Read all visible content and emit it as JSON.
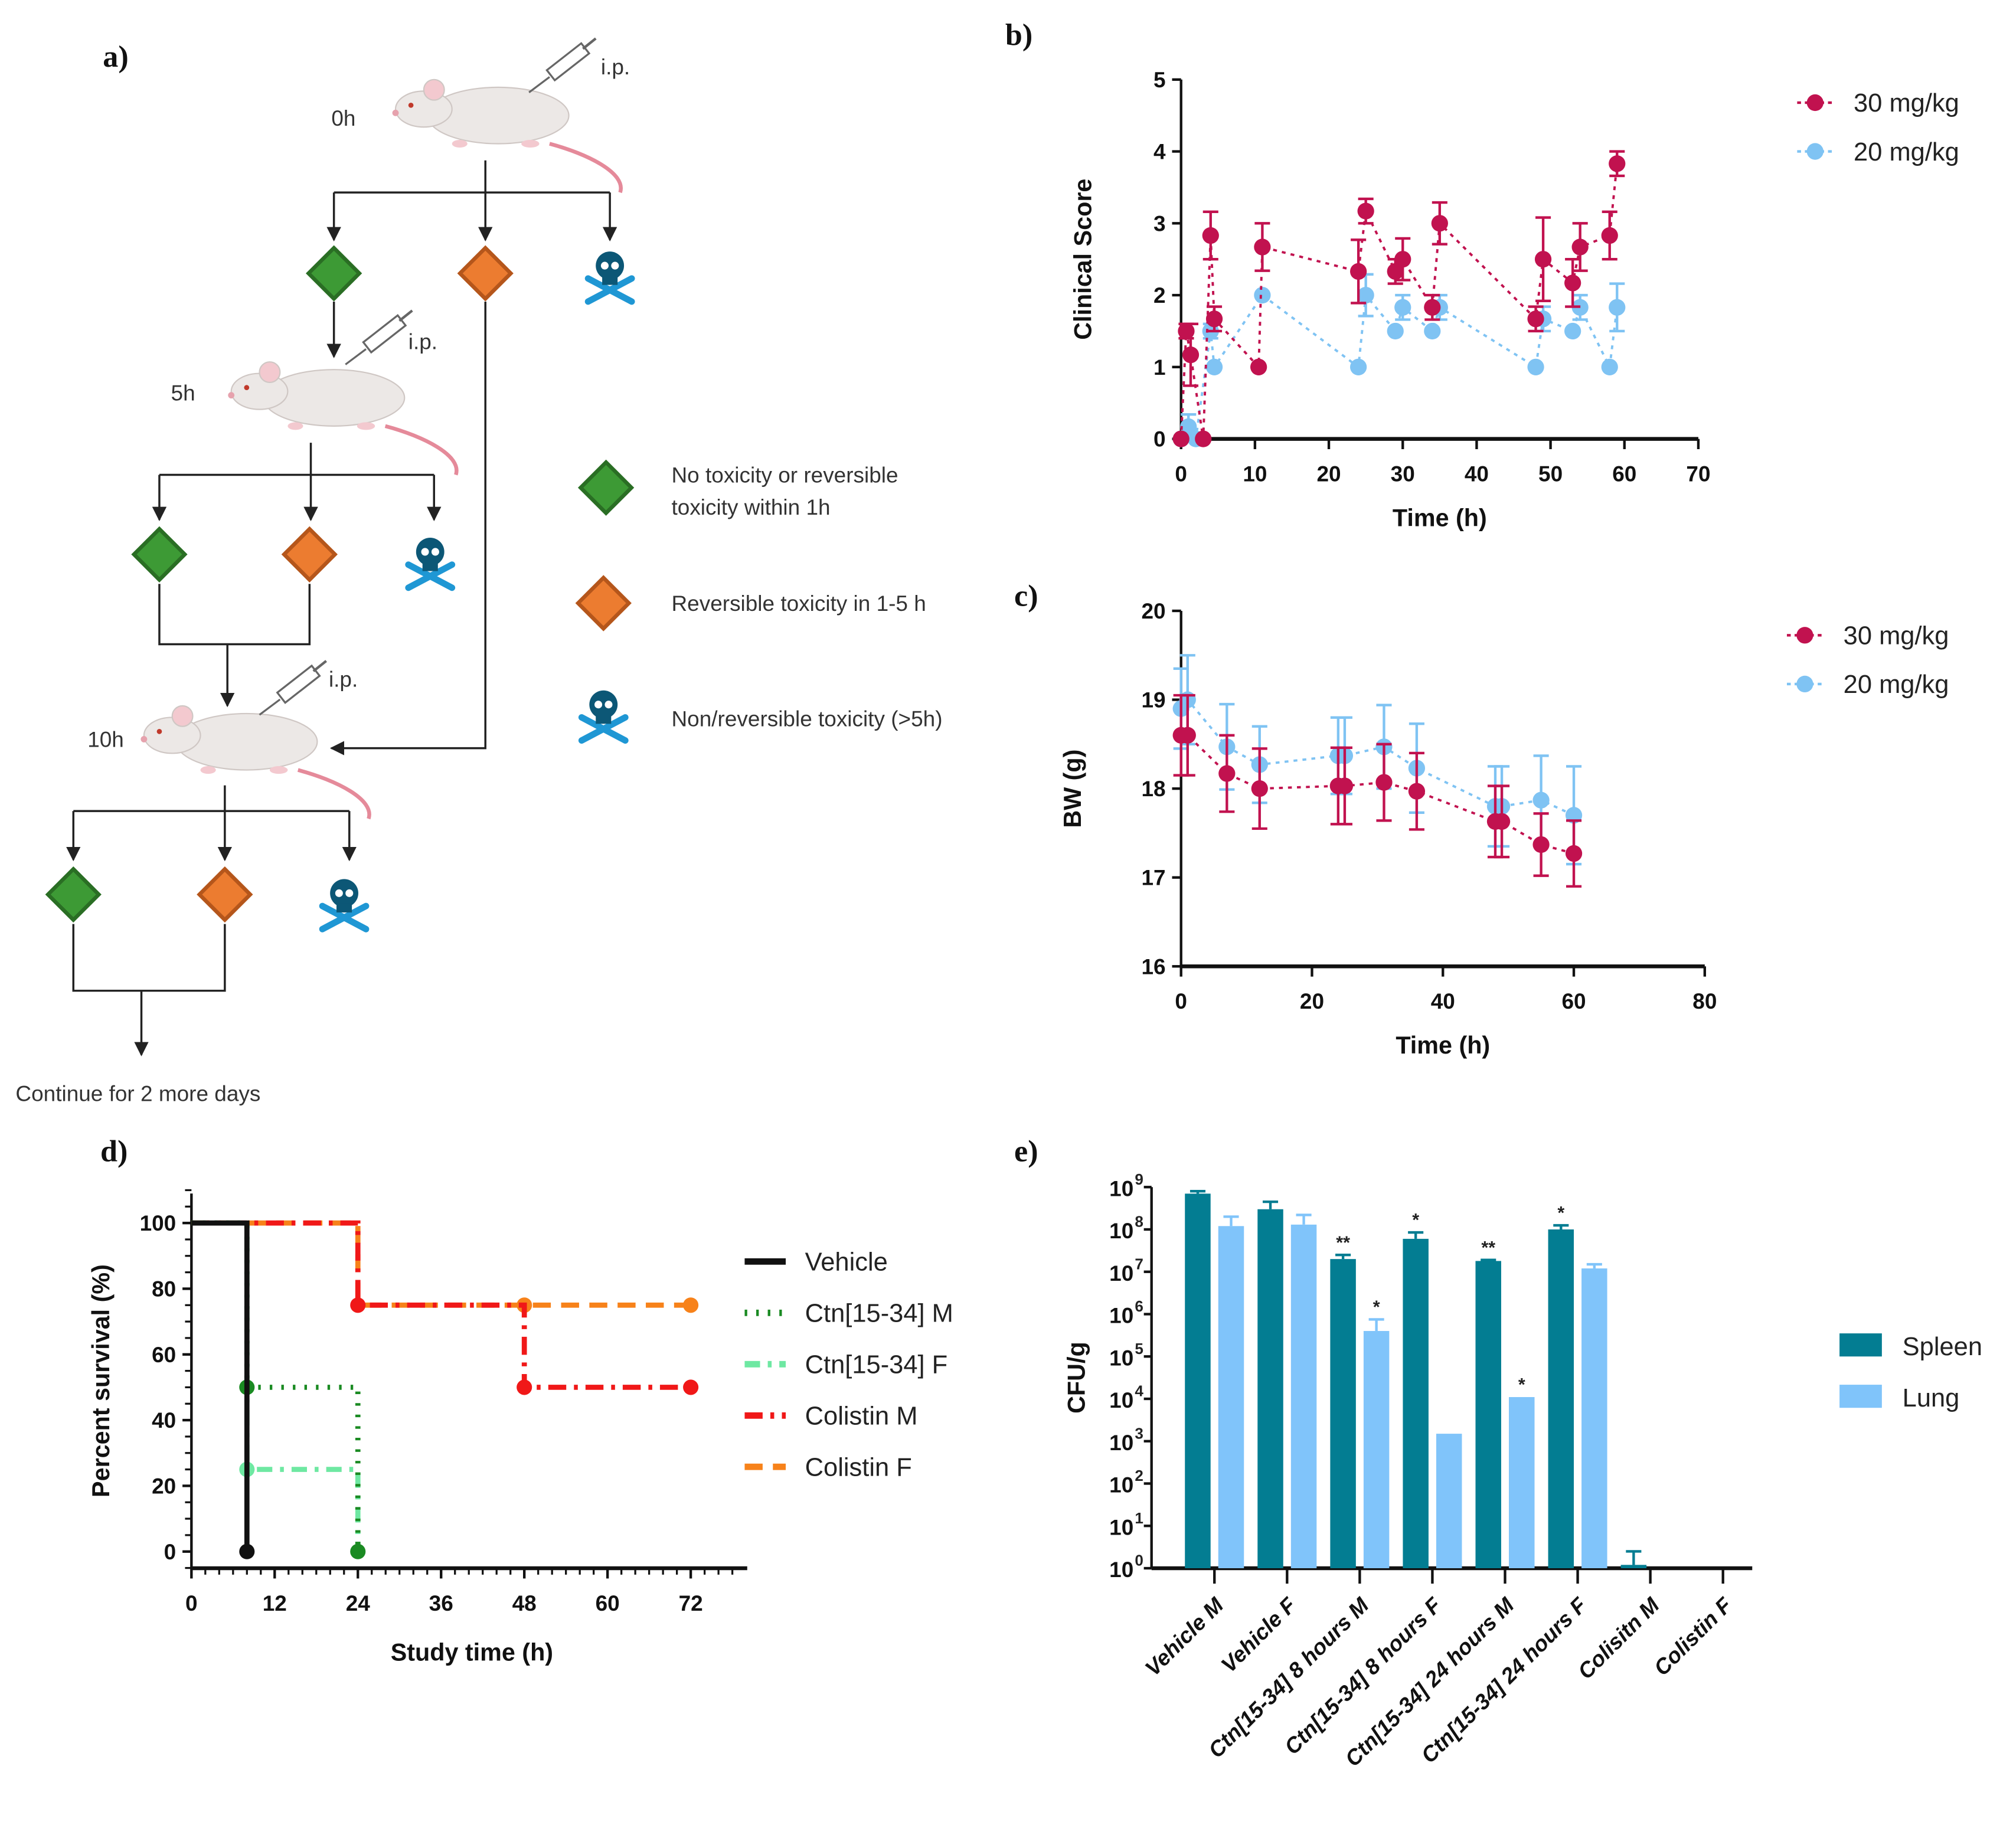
{
  "panel_labels": {
    "a": "a)",
    "b": "b)",
    "c": "c)",
    "d": "d)",
    "e": "e)"
  },
  "panel_a": {
    "time_labels": [
      "0h",
      "5h",
      "10h"
    ],
    "injection_label": "i.p.",
    "final_step": "Continue  for 2 more days",
    "legend": [
      {
        "icon": "green-diamond",
        "color": "#3d9a35",
        "lines": [
          "No toxicity or reversible",
          "toxicity within 1h"
        ]
      },
      {
        "icon": "orange-diamond",
        "color": "#ec7c30",
        "lines": [
          "Reversible  toxicity in 1-5 h"
        ]
      },
      {
        "icon": "skull-crossbones",
        "color": "#1f97d4",
        "lines": [
          "Non/reversible  toxicity (>5h)"
        ]
      }
    ]
  },
  "chart_data": [
    {
      "id": "b",
      "type": "scatter",
      "xlabel": "Time (h)",
      "ylabel": "Clinical Score",
      "xlim": [
        0,
        70
      ],
      "ylim": [
        0,
        5
      ],
      "xticks": [
        0,
        10,
        20,
        30,
        40,
        50,
        60,
        70
      ],
      "yticks": [
        0,
        1,
        2,
        3,
        4,
        5
      ],
      "legend_position": "top-right",
      "error_bars": true,
      "lines": "dotted",
      "series": [
        {
          "name": "30 mg/kg",
          "color": "#c1124f",
          "x": [
            0,
            0.7,
            1.3,
            3,
            4,
            4.5,
            10.5,
            11,
            24,
            25,
            29,
            30,
            34,
            35,
            48,
            49,
            53,
            54,
            58,
            59
          ],
          "y": [
            0,
            1.5,
            1.17,
            0,
            2.83,
            1.67,
            1,
            2.67,
            2.33,
            3.17,
            2.33,
            2.5,
            1.83,
            3,
            1.67,
            2.5,
            2.17,
            2.67,
            2.83,
            3.83
          ],
          "err": [
            0,
            0.1,
            0.43,
            0,
            0.33,
            0.17,
            0,
            0.33,
            0.44,
            0.17,
            0.17,
            0.29,
            0.17,
            0.29,
            0.17,
            0.58,
            0.33,
            0.33,
            0.33,
            0.17
          ]
        },
        {
          "name": "20 mg/kg",
          "color": "#7fc3f3",
          "x": [
            0,
            1,
            2,
            4,
            4.5,
            11,
            24,
            25,
            29,
            30,
            34,
            35,
            48,
            49,
            53,
            54,
            58,
            59
          ],
          "y": [
            0,
            0.17,
            0,
            1.5,
            1,
            2,
            1,
            2,
            1.5,
            1.83,
            1.5,
            1.83,
            1,
            1.67,
            1.5,
            1.83,
            1,
            1.83
          ],
          "err": [
            0,
            0.17,
            0,
            0.1,
            0,
            0,
            0,
            0.29,
            0,
            0.17,
            0,
            0.17,
            0,
            0.17,
            0,
            0.17,
            0,
            0.33
          ]
        }
      ]
    },
    {
      "id": "c",
      "type": "scatter",
      "xlabel": "Time (h)",
      "ylabel": "BW  (g)",
      "xlim": [
        0,
        80
      ],
      "ylim": [
        16,
        20
      ],
      "xticks": [
        0,
        20,
        40,
        60,
        80
      ],
      "yticks": [
        16,
        17,
        18,
        19,
        20
      ],
      "legend_position": "top-right",
      "error_bars": true,
      "lines": "dotted",
      "series": [
        {
          "name": "30 mg/kg",
          "color": "#c1124f",
          "x": [
            0,
            1,
            7,
            12,
            24,
            25,
            31,
            36,
            48,
            49,
            55,
            60
          ],
          "y": [
            18.6,
            18.6,
            18.17,
            18,
            18.03,
            18.03,
            18.07,
            17.97,
            17.63,
            17.63,
            17.37,
            17.27
          ],
          "err": [
            0.45,
            0.45,
            0.43,
            0.45,
            0.43,
            0.43,
            0.43,
            0.43,
            0.4,
            0.4,
            0.35,
            0.37
          ]
        },
        {
          "name": "20 mg/kg",
          "color": "#7fc3f3",
          "x": [
            0,
            1,
            7,
            12,
            24,
            25,
            31,
            36,
            48,
            49,
            55,
            60
          ],
          "y": [
            18.9,
            19,
            18.47,
            18.27,
            18.37,
            18.37,
            18.47,
            18.23,
            17.8,
            17.8,
            17.87,
            17.7
          ],
          "err": [
            0.45,
            0.5,
            0.48,
            0.43,
            0.43,
            0.43,
            0.47,
            0.5,
            0.45,
            0.45,
            0.5,
            0.55
          ]
        }
      ]
    },
    {
      "id": "d",
      "type": "line",
      "step": true,
      "xlabel": "Study time (h)",
      "ylabel": "Percent survival (%)",
      "xlim": [
        0,
        78
      ],
      "ylim": [
        -5,
        110
      ],
      "xticks": [
        0,
        12,
        24,
        36,
        48,
        60,
        72
      ],
      "yticks": [
        0,
        20,
        40,
        60,
        80,
        100
      ],
      "legend_position": "right",
      "series": [
        {
          "name": "Vehicle",
          "color": "#111111",
          "dash": "",
          "x": [
            0,
            8,
            8
          ],
          "y": [
            100,
            100,
            0
          ],
          "markers": [
            [
              8,
              0
            ]
          ]
        },
        {
          "name": "Ctn[15-34] M",
          "color": "#1a8a22",
          "dash": "2 7",
          "x": [
            0,
            8,
            8,
            24,
            24
          ],
          "y": [
            100,
            100,
            50,
            50,
            0
          ],
          "markers": [
            [
              8,
              50
            ],
            [
              24,
              0
            ]
          ]
        },
        {
          "name": "Ctn[15-34] F",
          "color": "#6ee8a2",
          "dash": "12 6 3 6",
          "x": [
            0,
            8,
            8,
            24,
            24
          ],
          "y": [
            100,
            100,
            25,
            25,
            0
          ],
          "markers": [
            [
              8,
              25
            ]
          ]
        },
        {
          "name": "Colistin M",
          "color": "#f01818",
          "dash": "14 6 3 6",
          "x": [
            0,
            24,
            24,
            48,
            48,
            72
          ],
          "y": [
            100,
            100,
            75,
            75,
            50,
            50
          ],
          "markers": [
            [
              24,
              75
            ],
            [
              48,
              50
            ],
            [
              72,
              50
            ]
          ]
        },
        {
          "name": "Colistin F",
          "color": "#f7821a",
          "dash": "14 8",
          "x": [
            0,
            24,
            24,
            72
          ],
          "y": [
            100,
            100,
            75,
            75
          ],
          "markers": [
            [
              48,
              75
            ],
            [
              72,
              75
            ]
          ]
        }
      ]
    },
    {
      "id": "e",
      "type": "bar",
      "scale": "log",
      "ylabel": "CFU/g",
      "ylim": [
        1,
        1000000000
      ],
      "yticks": [
        "10",
        "10",
        "10",
        "10",
        "10",
        "10",
        "10",
        "10",
        "10",
        "10"
      ],
      "ytick_exponents": [
        "0",
        "1",
        "2",
        "3",
        "4",
        "5",
        "6",
        "7",
        "8",
        "9"
      ],
      "categories": [
        "Vehicle M",
        "Vehicle F",
        "Ctn[15-34] 8 hours M",
        "Ctn[15-34] 8 hours F",
        "Ctn[15-34] 24 hours M",
        "Ctn[15-34] 24 hours F",
        "Colisitn M",
        "Colistin F"
      ],
      "legend_position": "right",
      "series": [
        {
          "name": "Spleen",
          "color": "#037d92",
          "values": [
            700000000,
            300000000,
            20000000,
            60000000,
            18000000,
            100000000,
            1.2,
            0
          ],
          "err_upper": [
            800000000,
            450000000,
            25000000,
            85000000,
            19000000,
            125000000,
            2.5,
            0
          ],
          "sig": [
            "",
            "",
            "**",
            "*",
            "**",
            "*",
            "",
            ""
          ]
        },
        {
          "name": "Lung",
          "color": "#80c4fa",
          "values": [
            120000000,
            130000000,
            400000,
            1500,
            11000,
            12000000,
            0,
            0
          ],
          "err_upper": [
            200000000,
            220000000,
            750000,
            1500,
            11000,
            15000000,
            0,
            0
          ],
          "sig": [
            "",
            "",
            "*",
            "",
            "*",
            "",
            "",
            ""
          ]
        }
      ]
    }
  ]
}
